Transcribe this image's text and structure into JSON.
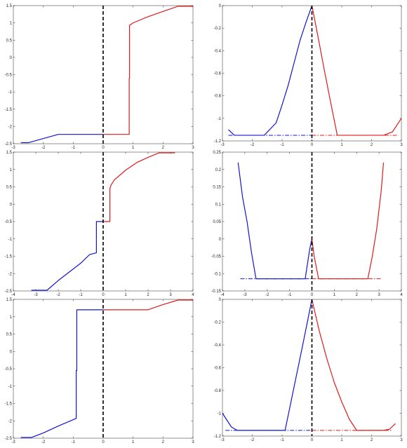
{
  "colors": {
    "left_branch": "#1414d2",
    "right_branch": "#e01b1b",
    "zero_line": "#000000",
    "axis": "#262626"
  },
  "chart_data": [
    {
      "type": "line",
      "title": "",
      "xlabel": "",
      "ylabel": "",
      "xlim": [
        -3,
        3
      ],
      "ylim": [
        -2.5,
        1.5
      ],
      "xticks": [
        "-3",
        "-2",
        "-1",
        "0",
        "1",
        "2",
        "3"
      ],
      "yticks": [
        "-2.5",
        "-2",
        "-1.5",
        "-1",
        "-0.5",
        "0",
        "0.5",
        "1",
        "1.5"
      ],
      "vline_x": 0,
      "series": [
        {
          "color": "blue",
          "style": "solid",
          "x": [
            -2.75,
            -2.5,
            -1.5,
            -1.0,
            -0.5,
            0
          ],
          "y": [
            -2.47,
            -2.47,
            -2.23,
            -2.23,
            -2.23,
            -2.23
          ]
        },
        {
          "color": "red",
          "style": "solid",
          "x": [
            0,
            0.5,
            0.87,
            0.87,
            0.88,
            0.88,
            1.0,
            1.5,
            2.0,
            2.5,
            3.0
          ],
          "y": [
            -2.23,
            -2.23,
            -2.23,
            -0.6,
            -0.6,
            0.93,
            1.0,
            1.18,
            1.33,
            1.48,
            1.48
          ]
        }
      ]
    },
    {
      "type": "line",
      "title": "",
      "xlabel": "",
      "ylabel": "",
      "xlim": [
        -3,
        3
      ],
      "ylim": [
        -1.2,
        0
      ],
      "xticks": [
        "-3",
        "-2",
        "-1",
        "0",
        "1",
        "2",
        "3"
      ],
      "yticks": [
        "-1.2",
        "-1",
        "-0.8",
        "-0.6",
        "-0.4",
        "-0.2",
        "0"
      ],
      "vline_x": 0,
      "series": [
        {
          "color": "blue",
          "style": "solid",
          "x": [
            -2.8,
            -2.6,
            -2.4,
            -1.6,
            -1.2,
            -1.0,
            -0.8,
            -0.6,
            -0.4,
            -0.2,
            0
          ],
          "y": [
            -1.1,
            -1.15,
            -1.15,
            -1.15,
            -1.04,
            -0.88,
            -0.71,
            -0.51,
            -0.31,
            -0.15,
            0
          ]
        },
        {
          "color": "blue",
          "style": "dashdot",
          "x": [
            -2.8,
            0
          ],
          "y": [
            -1.15,
            -1.15
          ]
        },
        {
          "color": "red",
          "style": "solid",
          "x": [
            0,
            0.2,
            0.4,
            0.6,
            0.85,
            1.5,
            2.4,
            2.7,
            3.0
          ],
          "y": [
            0,
            -0.27,
            -0.55,
            -0.82,
            -1.15,
            -1.15,
            -1.15,
            -1.12,
            -1.0
          ]
        },
        {
          "color": "red",
          "style": "dashdot",
          "x": [
            0,
            2.9
          ],
          "y": [
            -1.15,
            -1.15
          ]
        }
      ]
    },
    {
      "type": "line",
      "title": "",
      "xlabel": "",
      "ylabel": "",
      "xlim": [
        -4,
        4
      ],
      "ylim": [
        -2.5,
        1.5
      ],
      "xticks": [
        "-4",
        "-3",
        "-2",
        "-1",
        "0",
        "1",
        "2",
        "3",
        "4"
      ],
      "yticks": [
        "-2.5",
        "-2",
        "-1.5",
        "-1",
        "-0.5",
        "0",
        "0.5",
        "1",
        "1.5"
      ],
      "vline_x": 0,
      "series": [
        {
          "color": "blue",
          "style": "solid",
          "x": [
            -3.2,
            -2.5,
            -2.0,
            -1.5,
            -1.0,
            -0.6,
            -0.3,
            -0.3,
            0
          ],
          "y": [
            -2.48,
            -2.48,
            -2.2,
            -1.95,
            -1.7,
            -1.45,
            -1.4,
            -0.5,
            -0.5
          ]
        },
        {
          "color": "red",
          "style": "solid",
          "x": [
            0,
            0.3,
            0.3,
            0.35,
            0.5,
            1.0,
            1.5,
            2.0,
            2.5,
            3.2
          ],
          "y": [
            -0.5,
            -0.5,
            0.45,
            0.55,
            0.7,
            0.98,
            1.2,
            1.35,
            1.48,
            1.48
          ]
        }
      ]
    },
    {
      "type": "line",
      "title": "",
      "xlabel": "",
      "ylabel": "",
      "xlim": [
        -4,
        4
      ],
      "ylim": [
        -0.15,
        0.25
      ],
      "xticks": [
        "-4",
        "-3",
        "-2",
        "-1",
        "0",
        "1",
        "2",
        "3",
        "4"
      ],
      "yticks": [
        "-0.15",
        "-0.1",
        "-0.05",
        "0",
        "0.05",
        "0.1",
        "0.15",
        "0.2",
        "0.25"
      ],
      "vline_x": 0,
      "series": [
        {
          "color": "blue",
          "style": "solid",
          "x": [
            -3.3,
            -3.1,
            -2.9,
            -2.7,
            -2.5,
            -2.0,
            -0.3,
            -0.1,
            0
          ],
          "y": [
            0.22,
            0.12,
            0.05,
            -0.04,
            -0.115,
            -0.115,
            -0.115,
            -0.03,
            0
          ]
        },
        {
          "color": "blue",
          "style": "dashdot",
          "x": [
            -3.2,
            0
          ],
          "y": [
            -0.115,
            -0.115
          ]
        },
        {
          "color": "red",
          "style": "solid",
          "x": [
            0,
            0.1,
            0.3,
            2.0,
            2.5,
            2.7,
            2.9,
            3.1,
            3.2
          ],
          "y": [
            0,
            -0.05,
            -0.115,
            -0.115,
            -0.115,
            -0.05,
            0.03,
            0.14,
            0.22
          ]
        },
        {
          "color": "red",
          "style": "dashdot",
          "x": [
            0,
            3.1
          ],
          "y": [
            -0.115,
            -0.115
          ]
        }
      ]
    },
    {
      "type": "line",
      "title": "",
      "xlabel": "",
      "ylabel": "",
      "xlim": [
        -3,
        3
      ],
      "ylim": [
        -2.5,
        1.5
      ],
      "xticks": [
        "-3",
        "-2",
        "-1",
        "0",
        "1",
        "2",
        "3"
      ],
      "yticks": [
        "-2.5",
        "-2",
        "-1.5",
        "-1",
        "-0.5",
        "0",
        "0.5",
        "1",
        "1.5"
      ],
      "vline_x": 0,
      "series": [
        {
          "color": "blue",
          "style": "solid",
          "x": [
            -2.75,
            -2.4,
            -2.0,
            -1.5,
            -0.9,
            -0.9,
            -0.88,
            -0.88,
            0
          ],
          "y": [
            -2.48,
            -2.48,
            -2.35,
            -2.15,
            -1.93,
            -0.55,
            -0.55,
            1.2,
            1.2
          ]
        },
        {
          "color": "red",
          "style": "solid",
          "x": [
            0,
            0.5,
            1.0,
            1.5,
            2.0,
            2.5,
            3.0
          ],
          "y": [
            1.2,
            1.2,
            1.2,
            1.2,
            1.35,
            1.48,
            1.48
          ]
        }
      ]
    },
    {
      "type": "line",
      "title": "",
      "xlabel": "",
      "ylabel": "",
      "xlim": [
        -3,
        3
      ],
      "ylim": [
        -1.2,
        0
      ],
      "xticks": [
        "-3",
        "-2",
        "-1",
        "0",
        "1",
        "2",
        "3"
      ],
      "yticks": [
        "-1.2",
        "-1",
        "-0.8",
        "-0.6",
        "-0.4",
        "-0.2",
        "0"
      ],
      "vline_x": 0,
      "series": [
        {
          "color": "blue",
          "style": "solid",
          "x": [
            -3.0,
            -2.7,
            -2.5,
            -1.5,
            -0.9,
            -0.6,
            -0.3,
            0
          ],
          "y": [
            -1.0,
            -1.12,
            -1.15,
            -1.15,
            -1.15,
            -0.77,
            -0.39,
            0
          ]
        },
        {
          "color": "blue",
          "style": "dashdot",
          "x": [
            -2.9,
            0
          ],
          "y": [
            -1.15,
            -1.15
          ]
        },
        {
          "color": "red",
          "style": "solid",
          "x": [
            0,
            0.25,
            0.5,
            0.75,
            1.0,
            1.25,
            1.5,
            2.4,
            2.6,
            2.8
          ],
          "y": [
            0,
            -0.28,
            -0.52,
            -0.73,
            -0.9,
            -1.05,
            -1.15,
            -1.15,
            -1.14,
            -1.09
          ]
        },
        {
          "color": "red",
          "style": "dashdot",
          "x": [
            0,
            2.7
          ],
          "y": [
            -1.15,
            -1.15
          ]
        }
      ]
    }
  ]
}
